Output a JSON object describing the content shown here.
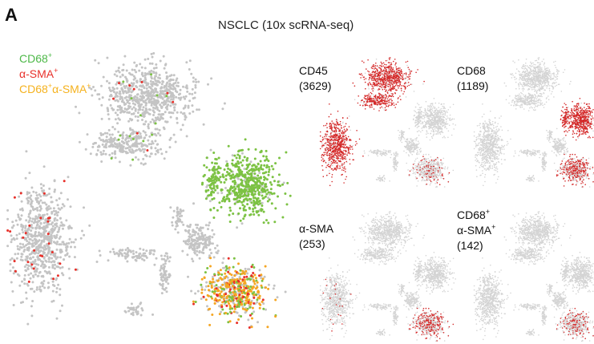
{
  "figure": {
    "panel_letter": "A",
    "title": "NSCLC (10x scRNA-seq)"
  },
  "colors": {
    "background_cell": "#c4c4c4",
    "cd68": "#7cc243",
    "sma": "#e8302a",
    "double": "#f5a623",
    "small_highlight": "#d42a2a"
  },
  "chart_data": [
    {
      "type": "scatter",
      "name": "main-tsne",
      "title": "NSCLC (10x scRNA-seq)",
      "xlabel": "",
      "ylabel": "",
      "axes": "none",
      "legend": {
        "placement": "top-left",
        "entries": [
          {
            "base": "CD68",
            "sup": "+",
            "color": "#7cc243"
          },
          {
            "base": "α-SMA",
            "sup": "+",
            "color": "#e8302a"
          },
          {
            "base": "CD68",
            "sup": "+",
            "base2": "α-SMA",
            "sup2": "+",
            "color": "#f5a623"
          }
        ]
      },
      "note": "t-SNE embedding; points colored by marker expression, gray = other cells"
    },
    {
      "type": "scatter",
      "name": "small-panels",
      "panels": [
        {
          "label_lines": [
            "CD45",
            "(3629)"
          ],
          "marker": "CD45",
          "count": 3629
        },
        {
          "label_lines": [
            "CD68",
            "(1189)"
          ],
          "marker": "CD68",
          "count": 1189
        },
        {
          "label_lines": [
            "α-SMA",
            "(253)"
          ],
          "marker": "α-SMA",
          "count": 253
        },
        {
          "label_lines": [
            "CD68+",
            "α-SMA+",
            "(142)"
          ],
          "marker": "CD68+α-SMA+",
          "count": 142
        }
      ]
    }
  ],
  "small_panels_text": {
    "p1": {
      "line1": "CD45",
      "line2": "(3629)"
    },
    "p2": {
      "line1": "CD68",
      "line2": "(1189)"
    },
    "p3": {
      "line1": "α-SMA",
      "line2": "(253)"
    },
    "p4": {
      "line1a": "CD68",
      "sup1": "+",
      "line2a": "α-SMA",
      "sup2": "+",
      "line3": "(142)"
    }
  },
  "legend_text": {
    "l1": "CD68",
    "l1sup": "+",
    "l2": "α-SMA",
    "l2sup": "+",
    "l3a": "CD68",
    "l3sup": "+",
    "l3b": "α-SMA",
    "l3sup2": "+"
  }
}
